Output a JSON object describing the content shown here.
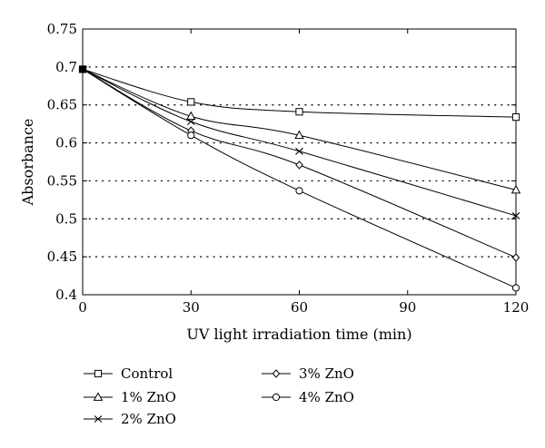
{
  "chart_data": {
    "type": "line",
    "title": "",
    "xlabel": "UV light irradiation time (min)",
    "ylabel": "Absorbance",
    "xlim": [
      0,
      120
    ],
    "ylim": [
      0.4,
      0.75
    ],
    "xticks": [
      0,
      30,
      60,
      90,
      120
    ],
    "yticks": [
      0.4,
      0.45,
      0.5,
      0.55,
      0.6,
      0.65,
      0.7,
      0.75
    ],
    "xtick_labels": [
      "0",
      "30",
      "60",
      "90",
      "120"
    ],
    "ytick_labels": [
      "0.4",
      "0.45",
      "0.5",
      "0.55",
      "0.6",
      "0.65",
      "0.7",
      "0.75"
    ],
    "grid": "horizontal dotted",
    "legend_position": "below",
    "x": [
      0,
      30,
      60,
      120
    ],
    "series": [
      {
        "name": "Control",
        "marker": "square",
        "values": [
          0.697,
          0.654,
          0.641,
          0.634
        ]
      },
      {
        "name": "1% ZnO",
        "marker": "triangle",
        "values": [
          0.697,
          0.635,
          0.61,
          0.538
        ]
      },
      {
        "name": "2% ZnO",
        "marker": "x",
        "values": [
          0.697,
          0.628,
          0.589,
          0.504
        ]
      },
      {
        "name": "3% ZnO",
        "marker": "diamond",
        "values": [
          0.697,
          0.616,
          0.571,
          0.449
        ]
      },
      {
        "name": "4% ZnO",
        "marker": "circle",
        "values": [
          0.697,
          0.61,
          0.537,
          0.409
        ]
      }
    ]
  }
}
